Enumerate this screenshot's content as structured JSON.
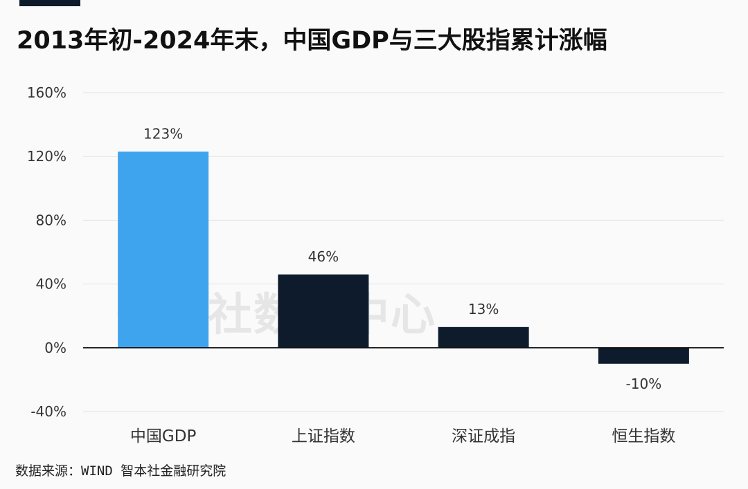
{
  "title": "2013年初-2024年末，中国GDP与三大股指累计涨幅",
  "watermark": "智本社数据中心",
  "source": "数据来源：WIND 智本社金融研究院",
  "colors": {
    "gdp": "#3fa4ee",
    "index": "#0d1b2c",
    "grid": "#e3e3e3",
    "axis": "#111111",
    "text": "#333333"
  },
  "chart_data": {
    "type": "bar",
    "categories": [
      "中国GDP",
      "上证指数",
      "深证成指",
      "恒生指数"
    ],
    "values": [
      123,
      46,
      13,
      -10
    ],
    "data_labels": [
      "123%",
      "46%",
      "13%",
      "-10%"
    ],
    "y_ticks": [
      160,
      120,
      80,
      40,
      0,
      -40
    ],
    "y_tick_labels": [
      "160%",
      "120%",
      "80%",
      "40%",
      "0%",
      "-40%"
    ],
    "ylim": [
      -40,
      160
    ],
    "grid": true,
    "legend": "none",
    "title": "2013年初-2024年末，中国GDP与三大股指累计涨幅",
    "xlabel": "",
    "ylabel": ""
  }
}
